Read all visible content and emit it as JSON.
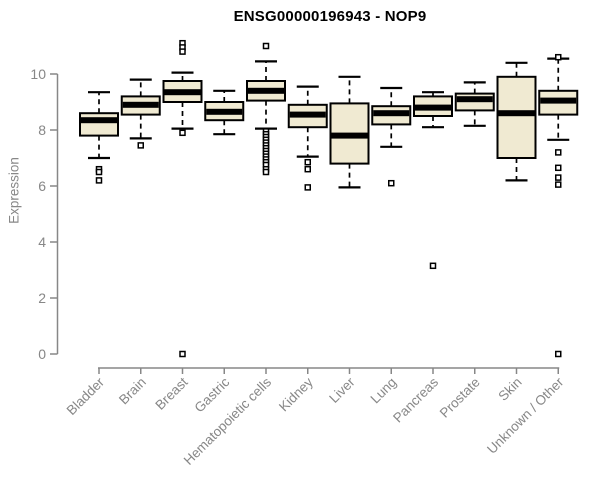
{
  "chart_data": {
    "type": "boxplot",
    "title": "ENSG00000196943 - NOP9",
    "xlabel": "",
    "ylabel": "Expression",
    "ylim": [
      0,
      11.2
    ],
    "yticks": [
      0,
      2,
      4,
      6,
      8,
      10
    ],
    "grid": false,
    "legend": false,
    "categories": [
      "Bladder",
      "Brain",
      "Breast",
      "Gastric",
      "Hematopoietic cells",
      "Kidney",
      "Liver",
      "Lung",
      "Pancreas",
      "Prostate",
      "Skin",
      "Unknown / Other"
    ],
    "boxes": [
      {
        "category": "Bladder",
        "whisker_low": 7.0,
        "q1": 7.8,
        "median": 8.35,
        "q3": 8.6,
        "whisker_high": 9.35,
        "outliers": [
          6.6,
          6.5,
          6.2
        ]
      },
      {
        "category": "Brain",
        "whisker_low": 7.7,
        "q1": 8.55,
        "median": 8.9,
        "q3": 9.2,
        "whisker_high": 9.8,
        "outliers": [
          7.45
        ]
      },
      {
        "category": "Breast",
        "whisker_low": 8.05,
        "q1": 9.0,
        "median": 9.35,
        "q3": 9.75,
        "whisker_high": 10.05,
        "outliers": [
          11.1,
          10.95,
          10.8,
          7.9,
          0.0
        ]
      },
      {
        "category": "Gastric",
        "whisker_low": 7.85,
        "q1": 8.35,
        "median": 8.65,
        "q3": 9.0,
        "whisker_high": 9.4,
        "outliers": []
      },
      {
        "category": "Hematopoietic cells",
        "whisker_low": 8.05,
        "q1": 9.05,
        "median": 9.4,
        "q3": 9.75,
        "whisker_high": 10.45,
        "outliers": [
          11.0,
          7.95,
          7.85,
          7.75,
          7.65,
          7.55,
          7.45,
          7.35,
          7.25,
          7.15,
          7.05,
          6.95,
          6.85,
          6.75,
          6.6,
          6.5
        ]
      },
      {
        "category": "Kidney",
        "whisker_low": 7.05,
        "q1": 8.1,
        "median": 8.55,
        "q3": 8.9,
        "whisker_high": 9.55,
        "outliers": [
          6.85,
          6.6,
          5.95
        ]
      },
      {
        "category": "Liver",
        "whisker_low": 5.95,
        "q1": 6.8,
        "median": 7.8,
        "q3": 8.95,
        "whisker_high": 9.9,
        "outliers": []
      },
      {
        "category": "Lung",
        "whisker_low": 7.4,
        "q1": 8.2,
        "median": 8.6,
        "q3": 8.85,
        "whisker_high": 9.5,
        "outliers": [
          6.1
        ]
      },
      {
        "category": "Pancreas",
        "whisker_low": 8.1,
        "q1": 8.5,
        "median": 8.8,
        "q3": 9.2,
        "whisker_high": 9.35,
        "outliers": [
          3.15
        ]
      },
      {
        "category": "Prostate",
        "whisker_low": 8.15,
        "q1": 8.7,
        "median": 9.1,
        "q3": 9.3,
        "whisker_high": 9.7,
        "outliers": []
      },
      {
        "category": "Skin",
        "whisker_low": 6.2,
        "q1": 7.0,
        "median": 8.6,
        "q3": 9.9,
        "whisker_high": 10.4,
        "outliers": []
      },
      {
        "category": "Unknown / Other",
        "whisker_low": 7.65,
        "q1": 8.55,
        "median": 9.05,
        "q3": 9.4,
        "whisker_high": 10.55,
        "outliers": [
          10.6,
          7.2,
          6.65,
          6.3,
          6.05,
          0.0
        ]
      }
    ],
    "colors": {
      "box_fill": "#F0EAD2",
      "box_border": "#000000",
      "median": "#000000",
      "whisker": "#000000",
      "outlier_stroke": "#000000",
      "axis": "#878787",
      "title": "#000000"
    }
  }
}
